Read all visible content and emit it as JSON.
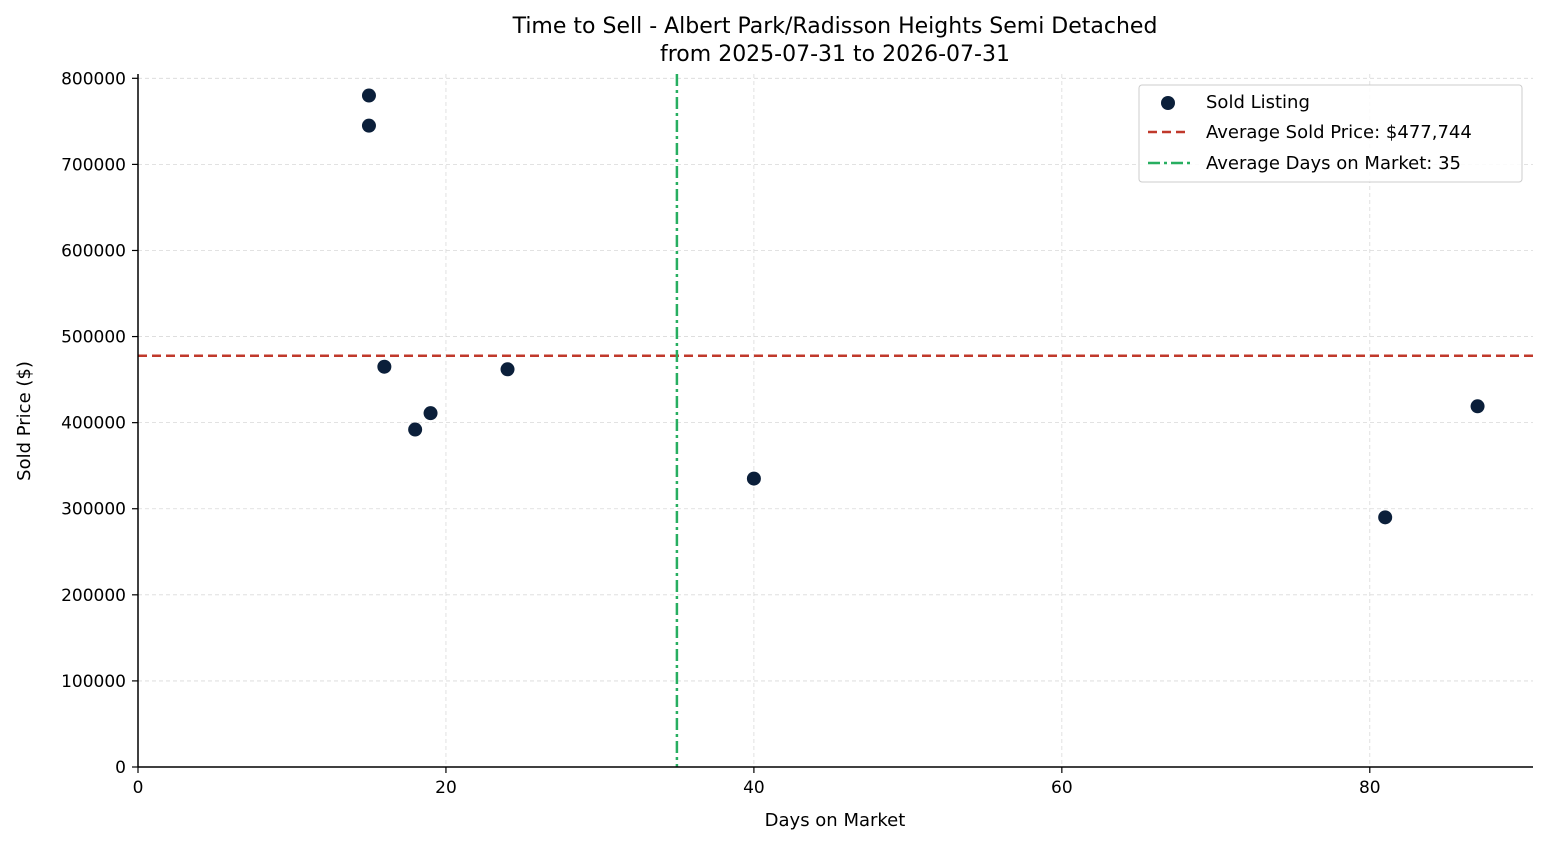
{
  "chart_data": {
    "type": "scatter",
    "title_line1": "Time to Sell - Albert Park/Radisson Heights Semi Detached",
    "title_line2": "from 2025-07-31 to 2026-07-31",
    "xlabel": "Days on Market",
    "ylabel": "Sold Price ($)",
    "xlim": [
      0,
      90.6
    ],
    "ylim": [
      0,
      805000
    ],
    "x_ticks": [
      0,
      20,
      40,
      60,
      80
    ],
    "y_ticks": [
      0,
      100000,
      200000,
      300000,
      400000,
      500000,
      600000,
      700000,
      800000
    ],
    "grid": true,
    "legend_position": "top-right",
    "series": [
      {
        "name": "Sold Listing",
        "color": "#0b1f3a",
        "points": [
          {
            "x": 15,
            "y": 780000
          },
          {
            "x": 15,
            "y": 745000
          },
          {
            "x": 16,
            "y": 465000
          },
          {
            "x": 18,
            "y": 392000
          },
          {
            "x": 19,
            "y": 411000
          },
          {
            "x": 24,
            "y": 462000
          },
          {
            "x": 40,
            "y": 335000
          },
          {
            "x": 81,
            "y": 290000
          },
          {
            "x": 87,
            "y": 419000
          }
        ]
      }
    ],
    "reference_lines": [
      {
        "name": "Average Sold Price: $477,744",
        "orientation": "horizontal",
        "value": 477744,
        "color": "#c0392b",
        "style": "dashed"
      },
      {
        "name": "Average Days on Market: 35",
        "orientation": "vertical",
        "value": 35,
        "color": "#27ae60",
        "style": "dashdot"
      }
    ]
  }
}
